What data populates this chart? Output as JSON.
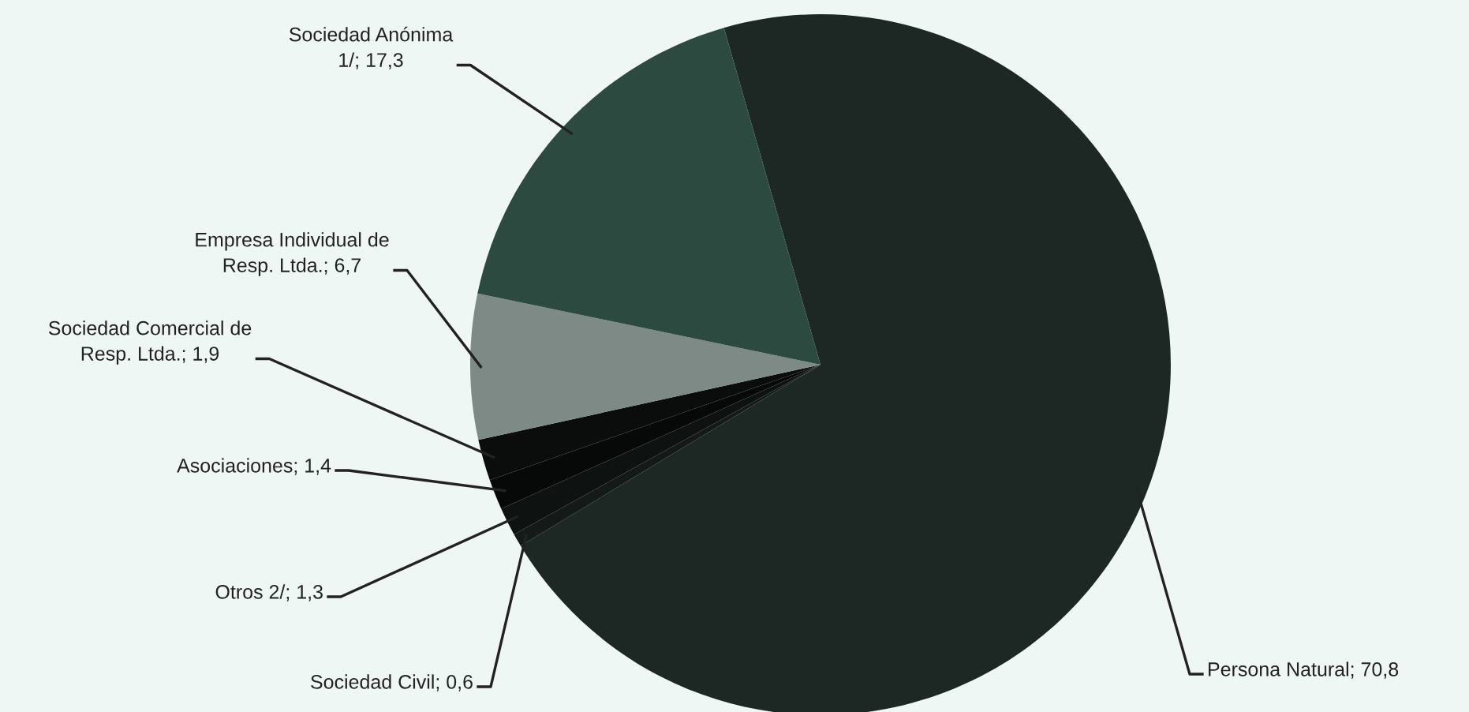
{
  "chart_data": {
    "type": "pie",
    "categories": [
      "Persona Natural",
      "Sociedad Civil",
      "Otros 2/",
      "Asociaciones",
      "Sociedad Comercial de\nResp. Ltda.",
      "Empresa Individual de\nResp. Ltda.",
      "Sociedad Anónima\n1/"
    ],
    "values": [
      70.8,
      0.6,
      1.3,
      1.4,
      1.9,
      6.7,
      17.3
    ],
    "value_labels": [
      "70,8",
      "0,6",
      "1,3",
      "1,4",
      "1,9",
      "6,7",
      "17,3"
    ],
    "colors": [
      "#1d2825",
      "#141a18",
      "#0e1210",
      "#070808",
      "#0b0c0c",
      "#7e8a86",
      "#2d4a41"
    ],
    "legend": false
  }
}
